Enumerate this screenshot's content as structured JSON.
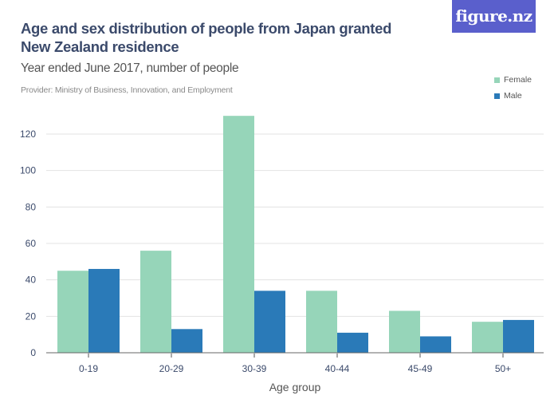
{
  "header": {
    "title": "Age and sex distribution of people from Japan granted New Zealand residence",
    "subtitle": "Year ended June 2017, number of people",
    "provider": "Provider: Ministry of Business, Innovation, and Employment",
    "logo": "figure.nz"
  },
  "colors": {
    "female": "#96d5b9",
    "male": "#2a7ab8",
    "logo_bg": "#5a5fcc",
    "grid": "#e3e3e3",
    "axis": "#666666"
  },
  "chart_data": {
    "type": "bar",
    "title": "Age and sex distribution of people from Japan granted New Zealand residence",
    "subtitle": "Year ended June 2017, number of people",
    "xlabel": "Age group",
    "ylabel": "",
    "categories": [
      "0-19",
      "20-29",
      "30-39",
      "40-44",
      "45-49",
      "50+"
    ],
    "series": [
      {
        "name": "Female",
        "values": [
          45,
          56,
          130,
          34,
          23,
          17
        ]
      },
      {
        "name": "Male",
        "values": [
          46,
          13,
          34,
          11,
          9,
          18
        ]
      }
    ],
    "ylim": [
      0,
      130
    ],
    "yticks": [
      0,
      20,
      40,
      60,
      80,
      100,
      120
    ],
    "grid": true,
    "legend": "top-right"
  }
}
